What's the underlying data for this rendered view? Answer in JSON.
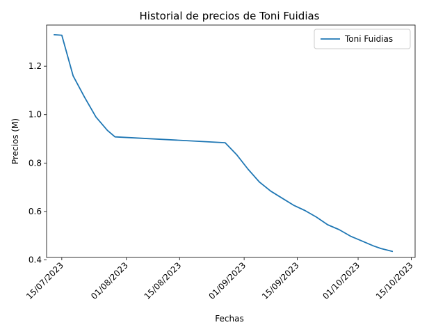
{
  "chart_data": {
    "type": "line",
    "title": "Historial de precios de Toni Fuidias",
    "xlabel": "Fechas",
    "ylabel": "Precios (M)",
    "xlim": [
      "2023-07-11",
      "2023-10-16"
    ],
    "ylim": [
      0.41,
      1.37
    ],
    "x_ticks": [
      {
        "date": "2023-07-15",
        "label": "15/07/2023"
      },
      {
        "date": "2023-08-01",
        "label": "01/08/2023"
      },
      {
        "date": "2023-08-15",
        "label": "15/08/2023"
      },
      {
        "date": "2023-09-01",
        "label": "01/09/2023"
      },
      {
        "date": "2023-09-15",
        "label": "15/09/2023"
      },
      {
        "date": "2023-10-01",
        "label": "01/10/2023"
      },
      {
        "date": "2023-10-15",
        "label": "15/10/2023"
      }
    ],
    "y_ticks": [
      {
        "value": 0.4,
        "label": "0.4"
      },
      {
        "value": 0.6,
        "label": "0.6"
      },
      {
        "value": 0.8,
        "label": "0.8"
      },
      {
        "value": 1.0,
        "label": "1.0"
      },
      {
        "value": 1.2,
        "label": "1.2"
      }
    ],
    "grid": false,
    "legend_position": "top-right",
    "series": [
      {
        "name": "Toni Fuidias",
        "color": "#1f77b4",
        "x": [
          "2023-07-13",
          "2023-07-15",
          "2023-07-18",
          "2023-07-21",
          "2023-07-24",
          "2023-07-27",
          "2023-07-29",
          "2023-08-27",
          "2023-08-30",
          "2023-09-02",
          "2023-09-05",
          "2023-09-08",
          "2023-09-11",
          "2023-09-14",
          "2023-09-17",
          "2023-09-20",
          "2023-09-23",
          "2023-09-26",
          "2023-09-29",
          "2023-10-02",
          "2023-10-05",
          "2023-10-07",
          "2023-10-10"
        ],
        "values": [
          1.33,
          1.328,
          1.16,
          1.072,
          0.99,
          0.935,
          0.908,
          0.884,
          0.835,
          0.775,
          0.722,
          0.684,
          0.655,
          0.626,
          0.604,
          0.577,
          0.545,
          0.525,
          0.498,
          0.478,
          0.458,
          0.447,
          0.435
        ]
      }
    ]
  }
}
